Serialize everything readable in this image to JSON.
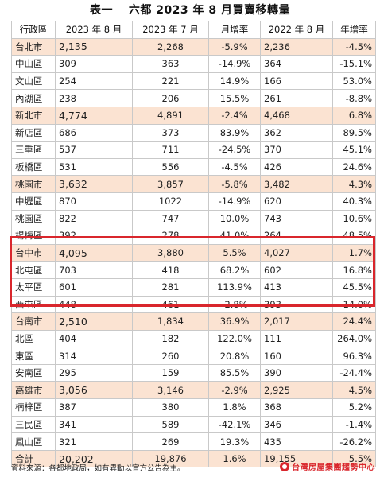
{
  "title": "表一　 六都 2023 年 8 月買賣移轉量",
  "headers": [
    "行政區",
    "2023 年 8 月",
    "2023 年 7 月",
    "月增率",
    "2022 年 8 月",
    "年增率"
  ],
  "rows": [
    {
      "name": "台北市",
      "type": "city",
      "aug2023": "2,135",
      "jul2023": "2,268",
      "mom": "-5.9%",
      "aug2022": "2,236",
      "yoy": "-4.5%"
    },
    {
      "name": "中山區",
      "type": "district",
      "aug2023": "309",
      "jul2023": "363",
      "mom": "-14.9%",
      "aug2022": "364",
      "yoy": "-15.1%"
    },
    {
      "name": "文山區",
      "type": "district",
      "aug2023": "254",
      "jul2023": "221",
      "mom": "14.9%",
      "aug2022": "166",
      "yoy": "53.0%"
    },
    {
      "name": "內湖區",
      "type": "district",
      "aug2023": "238",
      "jul2023": "206",
      "mom": "15.5%",
      "aug2022": "261",
      "yoy": "-8.8%"
    },
    {
      "name": "新北市",
      "type": "city",
      "aug2023": "4,774",
      "jul2023": "4,891",
      "mom": "-2.4%",
      "aug2022": "4,468",
      "yoy": "6.8%"
    },
    {
      "name": "新店區",
      "type": "district",
      "aug2023": "686",
      "jul2023": "373",
      "mom": "83.9%",
      "aug2022": "362",
      "yoy": "89.5%"
    },
    {
      "name": "三重區",
      "type": "district",
      "aug2023": "537",
      "jul2023": "711",
      "mom": "-24.5%",
      "aug2022": "370",
      "yoy": "45.1%"
    },
    {
      "name": "板橋區",
      "type": "district",
      "aug2023": "531",
      "jul2023": "556",
      "mom": "-4.5%",
      "aug2022": "426",
      "yoy": "24.6%"
    },
    {
      "name": "桃園市",
      "type": "city",
      "aug2023": "3,632",
      "jul2023": "3,857",
      "mom": "-5.8%",
      "aug2022": "3,482",
      "yoy": "4.3%"
    },
    {
      "name": "中壢區",
      "type": "district",
      "aug2023": "870",
      "jul2023": "1022",
      "mom": "-14.9%",
      "aug2022": "620",
      "yoy": "40.3%"
    },
    {
      "name": "桃園區",
      "type": "district",
      "aug2023": "822",
      "jul2023": "747",
      "mom": "10.0%",
      "aug2022": "743",
      "yoy": "10.6%"
    },
    {
      "name": "楊梅區",
      "type": "district",
      "aug2023": "392",
      "jul2023": "278",
      "mom": "41.0%",
      "aug2022": "264",
      "yoy": "48.5%"
    },
    {
      "name": "台中市",
      "type": "city",
      "aug2023": "4,095",
      "jul2023": "3,880",
      "mom": "5.5%",
      "aug2022": "4,027",
      "yoy": "1.7%"
    },
    {
      "name": "北屯區",
      "type": "district",
      "aug2023": "703",
      "jul2023": "418",
      "mom": "68.2%",
      "aug2022": "602",
      "yoy": "16.8%"
    },
    {
      "name": "太平區",
      "type": "district",
      "aug2023": "601",
      "jul2023": "281",
      "mom": "113.9%",
      "aug2022": "413",
      "yoy": "45.5%"
    },
    {
      "name": "西屯區",
      "type": "district",
      "aug2023": "448",
      "jul2023": "461",
      "mom": "-2.8%",
      "aug2022": "393",
      "yoy": "14.0%"
    },
    {
      "name": "台南市",
      "type": "city",
      "aug2023": "2,510",
      "jul2023": "1,834",
      "mom": "36.9%",
      "aug2022": "2,017",
      "yoy": "24.4%"
    },
    {
      "name": "北區",
      "type": "district",
      "aug2023": "404",
      "jul2023": "182",
      "mom": "122.0%",
      "aug2022": "111",
      "yoy": "264.0%"
    },
    {
      "name": "東區",
      "type": "district",
      "aug2023": "314",
      "jul2023": "260",
      "mom": "20.8%",
      "aug2022": "160",
      "yoy": "96.3%"
    },
    {
      "name": "安南區",
      "type": "district",
      "aug2023": "295",
      "jul2023": "159",
      "mom": "85.5%",
      "aug2022": "390",
      "yoy": "-24.4%"
    },
    {
      "name": "高雄市",
      "type": "city",
      "aug2023": "3,056",
      "jul2023": "3,146",
      "mom": "-2.9%",
      "aug2022": "2,925",
      "yoy": "4.5%"
    },
    {
      "name": "楠梓區",
      "type": "district",
      "aug2023": "387",
      "jul2023": "380",
      "mom": "1.8%",
      "aug2022": "368",
      "yoy": "5.2%"
    },
    {
      "name": "三民區",
      "type": "district",
      "aug2023": "341",
      "jul2023": "589",
      "mom": "-42.1%",
      "aug2022": "346",
      "yoy": "-1.4%"
    },
    {
      "name": "鳳山區",
      "type": "district",
      "aug2023": "321",
      "jul2023": "269",
      "mom": "19.3%",
      "aug2022": "435",
      "yoy": "-26.2%"
    },
    {
      "name": "合計",
      "type": "total",
      "aug2023": "20,202",
      "jul2023": "19,876",
      "mom": "1.6%",
      "aug2022": "19,155",
      "yoy": "5.5%"
    }
  ],
  "footer": {
    "source": "資料來源：各都地政局，如有異動以官方公告為主。",
    "logo_text": "台灣房屋集團趨勢中心",
    "logo_icon": "company-logo-icon"
  },
  "colors": {
    "city_row_bg": "#fbe3d2",
    "highlight_border": "#d9262c"
  }
}
